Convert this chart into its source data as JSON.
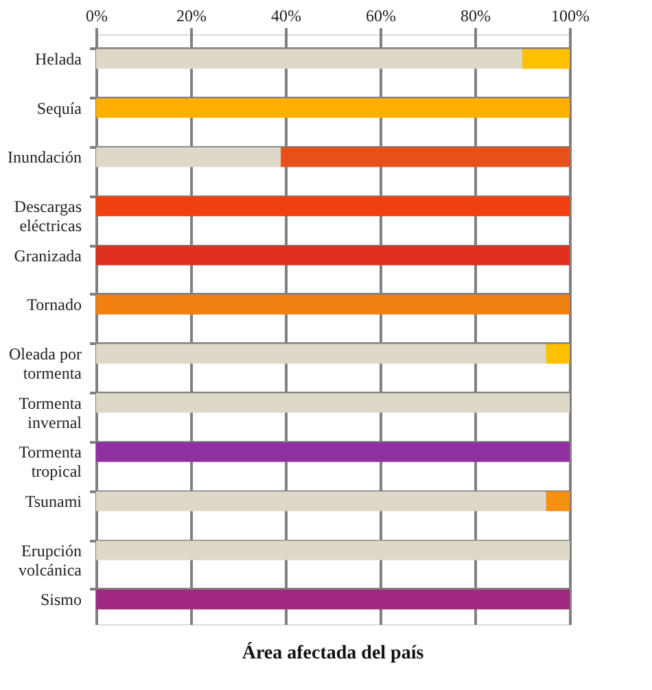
{
  "chart_data": {
    "type": "bar",
    "orientation": "horizontal",
    "stacked": true,
    "xlabel": "Área afectada del país",
    "categories": [
      "Helada",
      "Sequía",
      "Inundación",
      "Descargas eléctricas",
      "Granizada",
      "Tornado",
      "Oleada por tormenta",
      "Tormenta invernal",
      "Tormenta tropical",
      "Tsunami",
      "Erupción volcánica",
      "Sismo"
    ],
    "series": [
      {
        "color": "#ddd8c8",
        "values": [
          90,
          0,
          39,
          0,
          0,
          0,
          95,
          100,
          0,
          95,
          100,
          0
        ]
      },
      {
        "colors": [
          "#ffc000",
          "#ffb000",
          "#e8501a",
          "#f04010",
          "#e03020",
          "#f08010",
          "#ffc000",
          "#ffc000",
          "#9030a0",
          "#f59010",
          "#ffc000",
          "#a02880"
        ],
        "values": [
          10,
          100,
          61,
          100,
          100,
          100,
          5,
          0,
          100,
          5,
          0,
          100
        ]
      }
    ],
    "xlim": [
      0,
      100
    ],
    "xticks": [
      {
        "value": 0,
        "label": "0%"
      },
      {
        "value": 20,
        "label": "20%"
      },
      {
        "value": 40,
        "label": "40%"
      },
      {
        "value": 60,
        "label": "60%"
      },
      {
        "value": 80,
        "label": "80%"
      },
      {
        "value": 100,
        "label": "100%"
      }
    ],
    "grid": true
  }
}
